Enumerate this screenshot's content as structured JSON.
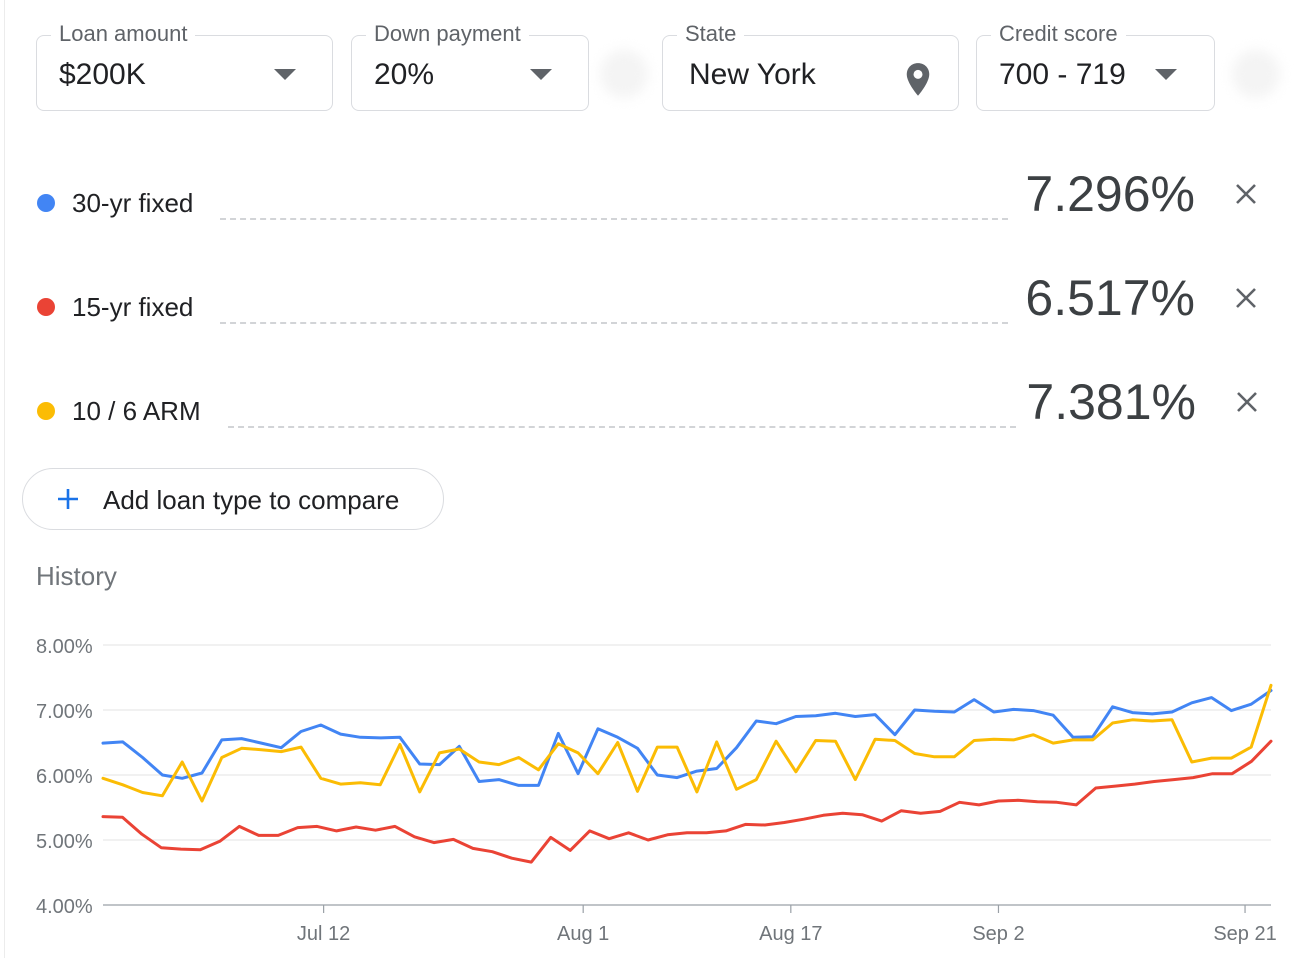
{
  "selectors": {
    "loan_amount": {
      "label": "Loan amount",
      "value": "$200K"
    },
    "down_payment": {
      "label": "Down payment",
      "value": "20%"
    },
    "state": {
      "label": "State",
      "value": "New York"
    },
    "credit_score": {
      "label": "Credit score",
      "value": "700 - 719"
    }
  },
  "loans": [
    {
      "name": "30-yr fixed",
      "rate": "7.296%",
      "color": "#4285f4"
    },
    {
      "name": "15-yr fixed",
      "rate": "6.517%",
      "color": "#ea4335"
    },
    {
      "name": "10 / 6 ARM",
      "rate": "7.381%",
      "color": "#fbbc04"
    }
  ],
  "add_button": {
    "label": "Add loan type to compare"
  },
  "history": {
    "title": "History"
  },
  "chart_data": {
    "type": "line",
    "x_start": "Jun 25",
    "x_end": "Sep 23",
    "x_tick_labels": [
      "Jul 12",
      "Aug 1",
      "Aug 17",
      "Sep 2",
      "Sep 21"
    ],
    "y_tick_labels": [
      "8.00%",
      "7.00%",
      "6.00%",
      "5.00%",
      "4.00%"
    ],
    "ylim": [
      4.0,
      8.0
    ],
    "grid": true,
    "series": [
      {
        "name": "30-yr fixed",
        "color": "#4285f4",
        "values": [
          6.49,
          6.51,
          6.27,
          6.0,
          5.95,
          6.03,
          6.54,
          6.56,
          6.49,
          6.42,
          6.67,
          6.77,
          6.63,
          6.58,
          6.57,
          6.58,
          6.17,
          6.16,
          6.44,
          5.9,
          5.93,
          5.84,
          5.84,
          6.64,
          6.02,
          6.71,
          6.58,
          6.41,
          6.0,
          5.96,
          6.06,
          6.1,
          6.42,
          6.83,
          6.79,
          6.9,
          6.91,
          6.95,
          6.9,
          6.93,
          6.62,
          7.0,
          6.98,
          6.97,
          7.16,
          6.97,
          7.01,
          6.99,
          6.92,
          6.58,
          6.59,
          7.05,
          6.96,
          6.94,
          6.97,
          7.11,
          7.19,
          6.99,
          7.09,
          7.3
        ]
      },
      {
        "name": "15-yr fixed",
        "color": "#ea4335",
        "values": [
          5.36,
          5.35,
          5.09,
          4.88,
          4.86,
          4.85,
          4.98,
          5.21,
          5.07,
          5.07,
          5.19,
          5.21,
          5.14,
          5.2,
          5.15,
          5.21,
          5.05,
          4.96,
          5.01,
          4.87,
          4.82,
          4.72,
          4.66,
          5.04,
          4.84,
          5.14,
          5.02,
          5.11,
          5.0,
          5.08,
          5.11,
          5.11,
          5.14,
          5.24,
          5.23,
          5.27,
          5.32,
          5.38,
          5.41,
          5.39,
          5.29,
          5.45,
          5.41,
          5.44,
          5.58,
          5.54,
          5.6,
          5.61,
          5.59,
          5.58,
          5.54,
          5.8,
          5.83,
          5.86,
          5.9,
          5.93,
          5.96,
          6.02,
          6.02,
          6.21,
          6.52
        ]
      },
      {
        "name": "10 / 6 ARM",
        "color": "#fbbc04",
        "values": [
          5.95,
          5.85,
          5.73,
          5.68,
          6.2,
          5.6,
          6.27,
          6.41,
          6.39,
          6.36,
          6.43,
          5.95,
          5.86,
          5.88,
          5.85,
          6.47,
          5.74,
          6.34,
          6.4,
          6.2,
          6.16,
          6.27,
          6.08,
          6.48,
          6.34,
          6.02,
          6.5,
          5.75,
          6.43,
          6.43,
          5.74,
          6.51,
          5.78,
          5.93,
          6.52,
          6.05,
          6.53,
          6.52,
          5.93,
          6.55,
          6.53,
          6.33,
          6.28,
          6.28,
          6.53,
          6.55,
          6.54,
          6.62,
          6.49,
          6.54,
          6.54,
          6.8,
          6.85,
          6.83,
          6.85,
          6.2,
          6.26,
          6.26,
          6.43,
          7.38
        ]
      }
    ]
  }
}
